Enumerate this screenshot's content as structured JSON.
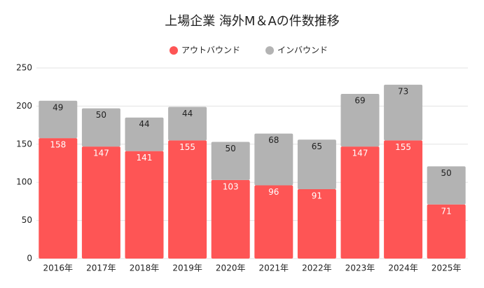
{
  "chart_data": {
    "type": "stacked_bar",
    "title": "上場企業 海外M＆Aの件数推移",
    "categories": [
      "2016年",
      "2017年",
      "2018年",
      "2019年",
      "2020年",
      "2021年",
      "2022年",
      "2023年",
      "2024年",
      "2025年"
    ],
    "series": [
      {
        "name": "アウトバウンド",
        "color": "#fe5555",
        "values": [
          158,
          147,
          141,
          155,
          103,
          96,
          91,
          147,
          155,
          71
        ]
      },
      {
        "name": "インバウンド",
        "color": "#b3b3b3",
        "values": [
          49,
          50,
          44,
          44,
          50,
          68,
          65,
          69,
          73,
          50
        ]
      }
    ],
    "ylim": [
      0,
      250
    ],
    "yticks": [
      0,
      50,
      100,
      150,
      200,
      250
    ],
    "grid": true,
    "legend": "top"
  }
}
